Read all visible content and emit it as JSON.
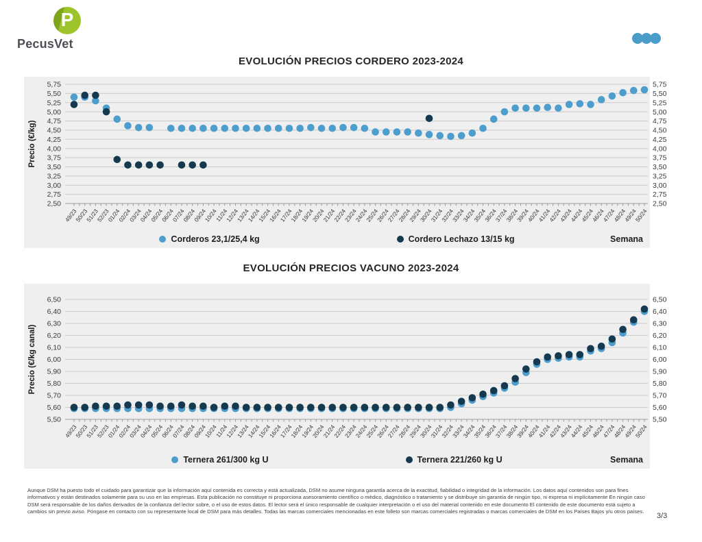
{
  "brand": {
    "logo_text": "PecusVet",
    "logo_letter": "P"
  },
  "colors": {
    "accent_dots": "#4A9DCB",
    "panel_bg": "#EFEFEF"
  },
  "page": {
    "number": "3/3"
  },
  "chart_data": [
    {
      "type": "scatter",
      "title": "EVOLUCIÓN PRECIOS CORDERO 2023-2024",
      "ylabel": "Precio (€/kg)",
      "xlabel": "Semana",
      "ylim": [
        2.5,
        5.75
      ],
      "ytick_step": 0.25,
      "grid": true,
      "legend_position": "bottom",
      "categories": [
        "49/23",
        "50/23",
        "51/23",
        "52/23",
        "01/24",
        "02/24",
        "03/24",
        "04/24",
        "05/24",
        "06/24",
        "07/24",
        "08/24",
        "09/24",
        "10/24",
        "11/24",
        "12/24",
        "13/24",
        "14/24",
        "15/24",
        "16/24",
        "17/24",
        "18/24",
        "19/24",
        "20/24",
        "21/24",
        "22/24",
        "23/24",
        "24/24",
        "25/24",
        "26/24",
        "27/24",
        "28/24",
        "29/24",
        "30/24",
        "31/24",
        "32/24",
        "33/24",
        "34/24",
        "35/24",
        "36/24",
        "37/24",
        "38/24",
        "39/24",
        "40/24",
        "41/24",
        "42/24",
        "43/24",
        "44/24",
        "45/24",
        "46/24",
        "47/24",
        "48/24",
        "49/24",
        "50/24"
      ],
      "series": [
        {
          "name": "Corderos 23,1/25,4 kg",
          "color": "#4D9ECD",
          "values": [
            5.4,
            5.4,
            5.3,
            5.1,
            4.8,
            4.62,
            4.57,
            4.57,
            null,
            4.55,
            4.55,
            4.55,
            4.55,
            4.55,
            4.55,
            4.55,
            4.55,
            4.55,
            4.55,
            4.55,
            4.55,
            4.55,
            4.57,
            4.55,
            4.55,
            4.57,
            4.57,
            4.55,
            4.45,
            4.45,
            4.45,
            4.45,
            4.42,
            4.38,
            4.35,
            4.33,
            4.35,
            4.42,
            4.55,
            4.8,
            5.0,
            5.1,
            5.1,
            5.1,
            5.12,
            5.1,
            5.2,
            5.22,
            5.2,
            5.33,
            5.43,
            5.52,
            5.58,
            5.6
          ]
        },
        {
          "name": "Cordero Lechazo 13/15 kg",
          "color": "#15394F",
          "values": [
            5.2,
            5.45,
            5.45,
            5.0,
            3.7,
            3.55,
            3.55,
            3.55,
            3.55,
            null,
            3.55,
            3.55,
            3.55,
            null,
            null,
            null,
            null,
            null,
            null,
            null,
            null,
            null,
            null,
            null,
            null,
            null,
            null,
            null,
            null,
            null,
            null,
            null,
            null,
            4.82,
            null,
            null,
            null,
            null,
            null,
            null,
            null,
            null,
            null,
            null,
            null,
            null,
            null,
            null,
            null,
            null,
            null,
            null,
            null,
            null
          ]
        }
      ]
    },
    {
      "type": "scatter",
      "title": "EVOLUCIÓN PRECIOS VACUNO 2023-2024",
      "ylabel": "Precio (€/kg canal)",
      "xlabel": "Semana",
      "ylim": [
        5.5,
        6.5
      ],
      "ytick_step": 0.1,
      "grid": true,
      "legend_position": "bottom",
      "categories": [
        "49/23",
        "50/23",
        "51/23",
        "52/23",
        "01/24",
        "02/24",
        "03/24",
        "04/24",
        "05/24",
        "06/24",
        "07/24",
        "08/24",
        "09/24",
        "10/24",
        "11/24",
        "12/24",
        "13/24",
        "14/24",
        "15/24",
        "16/24",
        "17/24",
        "18/24",
        "19/24",
        "20/24",
        "21/24",
        "22/24",
        "23/24",
        "24/24",
        "25/24",
        "26/24",
        "27/24",
        "28/24",
        "29/24",
        "30/24",
        "31/24",
        "32/24",
        "33/24",
        "34/24",
        "35/24",
        "36/24",
        "37/24",
        "38/24",
        "39/24",
        "40/24",
        "41/24",
        "42/24",
        "43/24",
        "44/24",
        "45/24",
        "46/24",
        "47/24",
        "48/24",
        "49/24",
        "50/24"
      ],
      "series": [
        {
          "name": "Ternera 261/300 kg U",
          "color": "#4D9ECD",
          "values": [
            5.59,
            5.59,
            5.59,
            5.59,
            5.59,
            5.59,
            5.59,
            5.59,
            5.59,
            5.59,
            5.59,
            5.59,
            5.59,
            5.59,
            5.59,
            5.59,
            5.59,
            5.59,
            5.59,
            5.59,
            5.59,
            5.59,
            5.59,
            5.59,
            5.59,
            5.59,
            5.59,
            5.59,
            5.59,
            5.59,
            5.59,
            5.59,
            5.59,
            5.59,
            5.59,
            5.6,
            5.63,
            5.66,
            5.69,
            5.72,
            5.76,
            5.81,
            5.89,
            5.96,
            6.0,
            6.01,
            6.02,
            6.02,
            6.07,
            6.09,
            6.14,
            6.22,
            6.31,
            6.4
          ]
        },
        {
          "name": "Ternera 221/260 kg U",
          "color": "#15394F",
          "values": [
            5.6,
            5.6,
            5.61,
            5.61,
            5.61,
            5.62,
            5.62,
            5.62,
            5.61,
            5.61,
            5.62,
            5.61,
            5.61,
            5.6,
            5.61,
            5.61,
            5.6,
            5.6,
            5.6,
            5.6,
            5.6,
            5.6,
            5.6,
            5.6,
            5.6,
            5.6,
            5.6,
            5.6,
            5.6,
            5.6,
            5.6,
            5.6,
            5.6,
            5.6,
            5.6,
            5.62,
            5.65,
            5.68,
            5.71,
            5.74,
            5.78,
            5.84,
            5.92,
            5.98,
            6.02,
            6.03,
            6.04,
            6.04,
            6.09,
            6.11,
            6.17,
            6.25,
            6.33,
            6.42
          ]
        }
      ]
    }
  ],
  "disclaimer": {
    "text": "Aunque DSM ha puesto todo el cuidado para garantizar que la información aquí contenida es correcta y está actualizada, DSM no asume ninguna garantía acerca de la exactitud, fiabilidad o integridad de la información. Los datos aquí contenidos son para fines informativos y están destinados solamente para su uso en las empresas. Esta publicación no constituye ni proporciona asesoramiento científico o médico, diagnóstico o tratamiento y se distribuye sin garantía de ningún tipo, ni expresa ni implícitamente En ningún caso DSM será responsable de los daños derivados de la confianza del lector sobre, o el uso de estos datos. El lector será el único responsable de cualquier interpretación o el uso del material contenido en este documento El contenido de este documento está sujeto a cambios sin previo aviso. Póngase en contacto con su representante local de DSM para más detalles. Todas las marcas comerciales mencionadas en este folleto son marcas comerciales registradas o marcas comerciales de DSM en los Países Bajos y/u otros países."
  }
}
